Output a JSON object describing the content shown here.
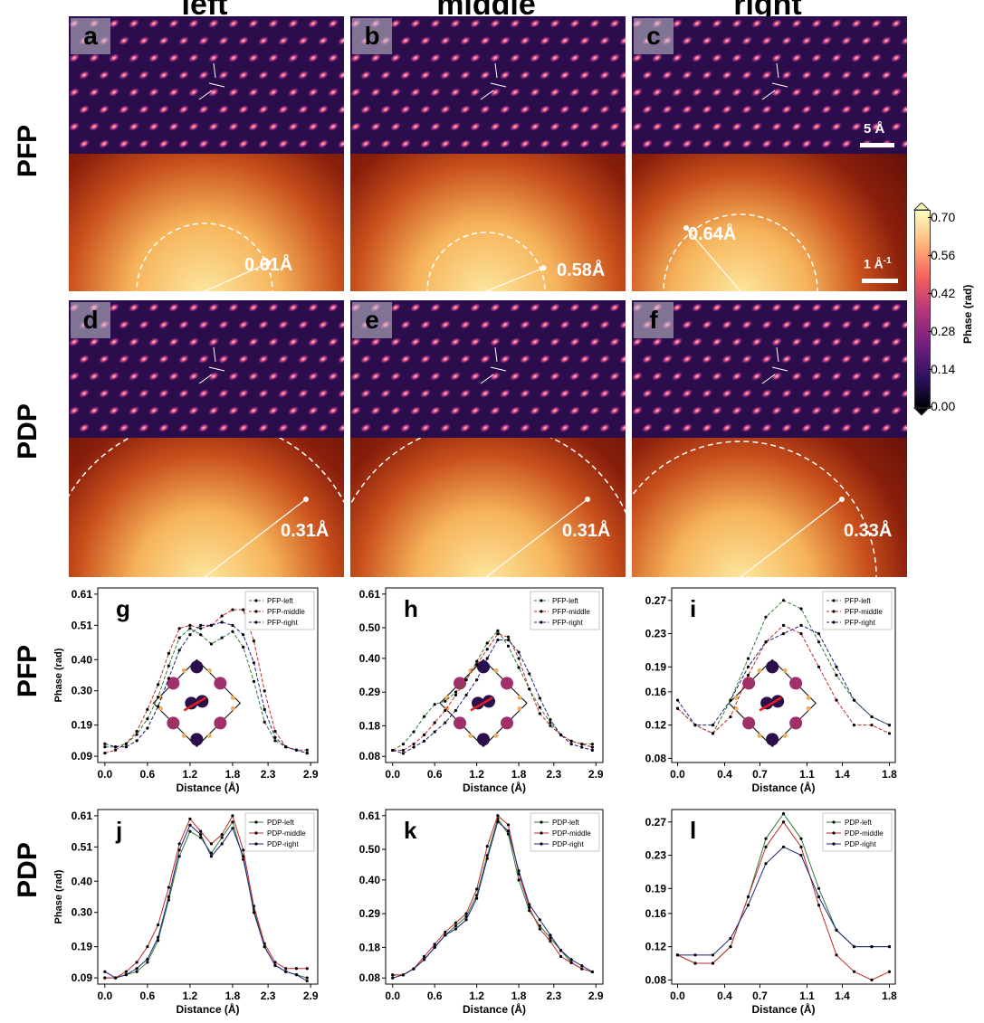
{
  "header": {
    "columns": [
      "left",
      "middle",
      "right"
    ]
  },
  "row_labels": {
    "pfp_top": "PFP",
    "pdp_top": "PDP",
    "pfp_bottom": "PFP",
    "pdp_bottom": "PDP"
  },
  "image_panels": {
    "letters": [
      "a",
      "b",
      "c",
      "d",
      "e",
      "f"
    ],
    "pfp_annotations": [
      "0.61Å",
      "0.58Å",
      "0.64Å"
    ],
    "pdp_annotations": [
      "0.31Å",
      "0.31Å",
      "0.33Å"
    ],
    "scalebar_real": "5 Å",
    "scalebar_recip": "1 Å",
    "scalebar_recip_sup": "-1"
  },
  "colorbar": {
    "label": "Phase (rad)",
    "ticks": [
      "0.70",
      "0.56",
      "0.42",
      "0.28",
      "0.14",
      "0.00"
    ],
    "colormap": "magma"
  },
  "colors": {
    "pfp_left": "#2e7d32",
    "pfp_middle": "#c62828",
    "pfp_right": "#1a237e",
    "pdp_left": "#2e7d32",
    "pdp_middle": "#c62828",
    "pdp_right": "#1a237e"
  },
  "chart_data": [
    {
      "panel": "g",
      "type": "line",
      "xlabel": "Distance (Å)",
      "ylabel": "Phase (rad)",
      "xlim": [
        -0.1,
        3.0
      ],
      "ylim": [
        0.07,
        0.63
      ],
      "xticks": [
        0.0,
        0.6,
        1.2,
        1.8,
        2.3,
        2.9
      ],
      "xtick_labels": [
        "0.0",
        "0.6",
        "1.2",
        "1.8",
        "2.3",
        "2.9"
      ],
      "yticks": [
        0.09,
        0.19,
        0.3,
        0.4,
        0.51,
        0.61
      ],
      "ytick_labels": [
        "0.09",
        "0.19",
        "0.30",
        "0.40",
        "0.51",
        "0.61"
      ],
      "style": "dashed",
      "legend": "top-right",
      "series": [
        {
          "name": "PFP-left",
          "color": "#2e7d32",
          "x": [
            0.0,
            0.15,
            0.3,
            0.45,
            0.6,
            0.75,
            0.9,
            1.05,
            1.2,
            1.35,
            1.5,
            1.65,
            1.8,
            1.95,
            2.1,
            2.25,
            2.4,
            2.55,
            2.7,
            2.85
          ],
          "y": [
            0.12,
            0.12,
            0.13,
            0.16,
            0.21,
            0.28,
            0.38,
            0.47,
            0.5,
            0.48,
            0.45,
            0.47,
            0.49,
            0.44,
            0.33,
            0.2,
            0.14,
            0.12,
            0.11,
            0.1
          ]
        },
        {
          "name": "PFP-middle",
          "color": "#c62828",
          "x": [
            0.0,
            0.15,
            0.3,
            0.45,
            0.6,
            0.75,
            0.9,
            1.05,
            1.2,
            1.35,
            1.5,
            1.65,
            1.8,
            1.95,
            2.1,
            2.25,
            2.4,
            2.55,
            2.7,
            2.85
          ],
          "y": [
            0.1,
            0.11,
            0.13,
            0.17,
            0.24,
            0.32,
            0.42,
            0.5,
            0.51,
            0.5,
            0.51,
            0.54,
            0.56,
            0.56,
            0.46,
            0.3,
            0.17,
            0.12,
            0.11,
            0.11
          ]
        },
        {
          "name": "PFP-right",
          "color": "#1a237e",
          "x": [
            0.0,
            0.15,
            0.3,
            0.45,
            0.6,
            0.75,
            0.9,
            1.05,
            1.2,
            1.35,
            1.5,
            1.65,
            1.8,
            1.95,
            2.1,
            2.25,
            2.4,
            2.55,
            2.7,
            2.85
          ],
          "y": [
            0.13,
            0.12,
            0.12,
            0.14,
            0.18,
            0.25,
            0.34,
            0.43,
            0.48,
            0.51,
            0.51,
            0.52,
            0.51,
            0.48,
            0.39,
            0.24,
            0.15,
            0.12,
            0.11,
            0.1
          ]
        }
      ]
    },
    {
      "panel": "h",
      "type": "line",
      "xlabel": "Distance (Å)",
      "ylabel": "",
      "xlim": [
        -0.1,
        3.0
      ],
      "ylim": [
        0.06,
        0.63
      ],
      "xticks": [
        0.0,
        0.6,
        1.2,
        1.8,
        2.3,
        2.9
      ],
      "xtick_labels": [
        "0.0",
        "0.6",
        "1.2",
        "1.8",
        "2.3",
        "2.9"
      ],
      "yticks": [
        0.08,
        0.18,
        0.29,
        0.4,
        0.5,
        0.61
      ],
      "ytick_labels": [
        "0.08",
        "0.18",
        "0.29",
        "0.40",
        "0.50",
        "0.61"
      ],
      "style": "dashed",
      "legend": "top-right",
      "series": [
        {
          "name": "PFP-left",
          "color": "#2e7d32",
          "x": [
            0.0,
            0.15,
            0.3,
            0.45,
            0.6,
            0.75,
            0.9,
            1.05,
            1.2,
            1.35,
            1.5,
            1.65,
            1.8,
            1.95,
            2.1,
            2.25,
            2.4,
            2.55,
            2.7,
            2.85
          ],
          "y": [
            0.1,
            0.12,
            0.16,
            0.21,
            0.25,
            0.26,
            0.29,
            0.33,
            0.39,
            0.45,
            0.49,
            0.44,
            0.37,
            0.3,
            0.24,
            0.19,
            0.15,
            0.13,
            0.12,
            0.12
          ]
        },
        {
          "name": "PFP-middle",
          "color": "#c62828",
          "x": [
            0.0,
            0.15,
            0.3,
            0.45,
            0.6,
            0.75,
            0.9,
            1.05,
            1.2,
            1.35,
            1.5,
            1.65,
            1.8,
            1.95,
            2.1,
            2.25,
            2.4,
            2.55,
            2.7,
            2.85
          ],
          "y": [
            0.1,
            0.1,
            0.12,
            0.15,
            0.19,
            0.23,
            0.28,
            0.33,
            0.38,
            0.43,
            0.48,
            0.47,
            0.4,
            0.3,
            0.22,
            0.18,
            0.15,
            0.13,
            0.12,
            0.11
          ]
        },
        {
          "name": "PFP-right",
          "color": "#1a237e",
          "x": [
            0.0,
            0.15,
            0.3,
            0.45,
            0.6,
            0.75,
            0.9,
            1.05,
            1.2,
            1.35,
            1.5,
            1.65,
            1.8,
            1.95,
            2.1,
            2.25,
            2.4,
            2.55,
            2.7,
            2.85
          ],
          "y": [
            0.1,
            0.09,
            0.11,
            0.13,
            0.16,
            0.19,
            0.23,
            0.28,
            0.33,
            0.4,
            0.46,
            0.46,
            0.42,
            0.35,
            0.27,
            0.2,
            0.15,
            0.12,
            0.11,
            0.1
          ]
        }
      ]
    },
    {
      "panel": "i",
      "type": "line",
      "xlabel": "Distance (Å)",
      "ylabel": "",
      "xlim": [
        -0.05,
        1.85
      ],
      "ylim": [
        0.075,
        0.285
      ],
      "xticks": [
        0.0,
        0.4,
        0.7,
        1.1,
        1.4,
        1.8
      ],
      "xtick_labels": [
        "0.0",
        "0.4",
        "0.7",
        "1.1",
        "1.4",
        "1.8"
      ],
      "yticks": [
        0.08,
        0.12,
        0.16,
        0.19,
        0.23,
        0.27
      ],
      "ytick_labels": [
        "0.08",
        "0.12",
        "0.16",
        "0.19",
        "0.23",
        "0.27"
      ],
      "style": "dashed",
      "legend": "top-right",
      "series": [
        {
          "name": "PFP-left",
          "color": "#2e7d32",
          "x": [
            0.0,
            0.15,
            0.3,
            0.45,
            0.6,
            0.75,
            0.9,
            1.05,
            1.2,
            1.35,
            1.5,
            1.65,
            1.8
          ],
          "y": [
            0.14,
            0.12,
            0.11,
            0.15,
            0.2,
            0.25,
            0.27,
            0.26,
            0.22,
            0.18,
            0.15,
            0.13,
            0.12
          ]
        },
        {
          "name": "PFP-middle",
          "color": "#c62828",
          "x": [
            0.0,
            0.15,
            0.3,
            0.45,
            0.6,
            0.75,
            0.9,
            1.05,
            1.2,
            1.35,
            1.5,
            1.65,
            1.8
          ],
          "y": [
            0.14,
            0.12,
            0.11,
            0.13,
            0.18,
            0.22,
            0.24,
            0.23,
            0.19,
            0.15,
            0.12,
            0.12,
            0.11
          ]
        },
        {
          "name": "PFP-right",
          "color": "#1a237e",
          "x": [
            0.0,
            0.15,
            0.3,
            0.45,
            0.6,
            0.75,
            0.9,
            1.05,
            1.2,
            1.35,
            1.5,
            1.65,
            1.8
          ],
          "y": [
            0.15,
            0.12,
            0.12,
            0.15,
            0.19,
            0.22,
            0.23,
            0.24,
            0.23,
            0.19,
            0.15,
            0.13,
            0.12
          ]
        }
      ]
    },
    {
      "panel": "j",
      "type": "line",
      "xlabel": "Distance (Å)",
      "ylabel": "Phase (rad)",
      "xlim": [
        -0.1,
        3.0
      ],
      "ylim": [
        0.07,
        0.63
      ],
      "xticks": [
        0.0,
        0.6,
        1.2,
        1.8,
        2.3,
        2.9
      ],
      "xtick_labels": [
        "0.0",
        "0.6",
        "1.2",
        "1.8",
        "2.3",
        "2.9"
      ],
      "yticks": [
        0.09,
        0.19,
        0.3,
        0.4,
        0.51,
        0.61
      ],
      "ytick_labels": [
        "0.09",
        "0.19",
        "0.30",
        "0.40",
        "0.51",
        "0.61"
      ],
      "style": "solid",
      "legend": "top-right",
      "series": [
        {
          "name": "PDP-left",
          "color": "#2e7d32",
          "x": [
            0.0,
            0.15,
            0.3,
            0.45,
            0.6,
            0.75,
            0.9,
            1.05,
            1.2,
            1.35,
            1.5,
            1.65,
            1.8,
            1.95,
            2.1,
            2.25,
            2.4,
            2.55,
            2.7,
            2.85
          ],
          "y": [
            0.09,
            0.09,
            0.1,
            0.11,
            0.14,
            0.21,
            0.34,
            0.48,
            0.56,
            0.54,
            0.49,
            0.54,
            0.59,
            0.47,
            0.31,
            0.19,
            0.13,
            0.11,
            0.1,
            0.09
          ]
        },
        {
          "name": "PDP-middle",
          "color": "#c62828",
          "x": [
            0.0,
            0.15,
            0.3,
            0.45,
            0.6,
            0.75,
            0.9,
            1.05,
            1.2,
            1.35,
            1.5,
            1.65,
            1.8,
            1.95,
            2.1,
            2.25,
            2.4,
            2.55,
            2.7,
            2.85
          ],
          "y": [
            0.09,
            0.09,
            0.11,
            0.14,
            0.19,
            0.26,
            0.38,
            0.52,
            0.6,
            0.56,
            0.52,
            0.55,
            0.61,
            0.5,
            0.32,
            0.2,
            0.14,
            0.12,
            0.12,
            0.12
          ]
        },
        {
          "name": "PDP-right",
          "color": "#1a237e",
          "x": [
            0.0,
            0.15,
            0.3,
            0.45,
            0.6,
            0.75,
            0.9,
            1.05,
            1.2,
            1.35,
            1.5,
            1.65,
            1.8,
            1.95,
            2.1,
            2.25,
            2.4,
            2.55,
            2.7,
            2.85
          ],
          "y": [
            0.11,
            0.09,
            0.1,
            0.12,
            0.15,
            0.22,
            0.35,
            0.5,
            0.58,
            0.55,
            0.48,
            0.52,
            0.57,
            0.48,
            0.3,
            0.19,
            0.13,
            0.11,
            0.1,
            0.08
          ]
        }
      ]
    },
    {
      "panel": "k",
      "type": "line",
      "xlabel": "Distance (Å)",
      "ylabel": "",
      "xlim": [
        -0.1,
        3.0
      ],
      "ylim": [
        0.06,
        0.63
      ],
      "xticks": [
        0.0,
        0.6,
        1.2,
        1.8,
        2.3,
        2.9
      ],
      "xtick_labels": [
        "0.0",
        "0.6",
        "1.2",
        "1.8",
        "2.3",
        "2.9"
      ],
      "yticks": [
        0.08,
        0.18,
        0.29,
        0.4,
        0.5,
        0.61
      ],
      "ytick_labels": [
        "0.08",
        "0.18",
        "0.29",
        "0.40",
        "0.50",
        "0.61"
      ],
      "style": "solid",
      "legend": "top-right",
      "series": [
        {
          "name": "PDP-left",
          "color": "#2e7d32",
          "x": [
            0.0,
            0.15,
            0.3,
            0.45,
            0.6,
            0.75,
            0.9,
            1.05,
            1.2,
            1.35,
            1.5,
            1.65,
            1.8,
            1.95,
            2.1,
            2.25,
            2.4,
            2.55,
            2.7,
            2.85
          ],
          "y": [
            0.09,
            0.09,
            0.11,
            0.14,
            0.18,
            0.22,
            0.25,
            0.28,
            0.35,
            0.48,
            0.6,
            0.55,
            0.4,
            0.3,
            0.25,
            0.21,
            0.17,
            0.13,
            0.11,
            0.1
          ]
        },
        {
          "name": "PDP-middle",
          "color": "#c62828",
          "x": [
            0.0,
            0.15,
            0.3,
            0.45,
            0.6,
            0.75,
            0.9,
            1.05,
            1.2,
            1.35,
            1.5,
            1.65,
            1.8,
            1.95,
            2.1,
            2.25,
            2.4,
            2.55,
            2.7,
            2.85
          ],
          "y": [
            0.09,
            0.09,
            0.11,
            0.15,
            0.19,
            0.23,
            0.26,
            0.29,
            0.37,
            0.51,
            0.61,
            0.58,
            0.42,
            0.31,
            0.24,
            0.2,
            0.15,
            0.13,
            0.11,
            0.1
          ]
        },
        {
          "name": "PDP-right",
          "color": "#1a237e",
          "x": [
            0.0,
            0.15,
            0.3,
            0.45,
            0.6,
            0.75,
            0.9,
            1.05,
            1.2,
            1.35,
            1.5,
            1.65,
            1.8,
            1.95,
            2.1,
            2.25,
            2.4,
            2.55,
            2.7,
            2.85
          ],
          "y": [
            0.08,
            0.09,
            0.11,
            0.14,
            0.18,
            0.22,
            0.24,
            0.27,
            0.34,
            0.47,
            0.59,
            0.56,
            0.43,
            0.32,
            0.27,
            0.22,
            0.17,
            0.14,
            0.12,
            0.1
          ]
        }
      ]
    },
    {
      "panel": "l",
      "type": "line",
      "xlabel": "Distance (Å)",
      "ylabel": "",
      "xlim": [
        -0.05,
        1.85
      ],
      "ylim": [
        0.075,
        0.285
      ],
      "xticks": [
        0.0,
        0.4,
        0.7,
        1.1,
        1.4,
        1.8
      ],
      "xtick_labels": [
        "0.0",
        "0.4",
        "0.7",
        "1.1",
        "1.4",
        "1.8"
      ],
      "yticks": [
        0.08,
        0.12,
        0.16,
        0.19,
        0.23,
        0.27
      ],
      "ytick_labels": [
        "0.08",
        "0.12",
        "0.16",
        "0.19",
        "0.23",
        "0.27"
      ],
      "style": "solid",
      "legend": "top-right",
      "series": [
        {
          "name": "PDP-left",
          "color": "#2e7d32",
          "x": [
            0.0,
            0.15,
            0.3,
            0.45,
            0.6,
            0.75,
            0.9,
            1.05,
            1.2,
            1.35,
            1.5,
            1.65,
            1.8
          ],
          "y": [
            0.11,
            0.1,
            0.1,
            0.12,
            0.18,
            0.25,
            0.28,
            0.25,
            0.19,
            0.14,
            0.12,
            0.12,
            0.12
          ]
        },
        {
          "name": "PDP-middle",
          "color": "#c62828",
          "x": [
            0.0,
            0.15,
            0.3,
            0.45,
            0.6,
            0.75,
            0.9,
            1.05,
            1.2,
            1.35,
            1.5,
            1.65,
            1.8
          ],
          "y": [
            0.11,
            0.1,
            0.1,
            0.12,
            0.18,
            0.24,
            0.27,
            0.24,
            0.17,
            0.11,
            0.09,
            0.08,
            0.09
          ]
        },
        {
          "name": "PDP-right",
          "color": "#1a237e",
          "x": [
            0.0,
            0.15,
            0.3,
            0.45,
            0.6,
            0.75,
            0.9,
            1.05,
            1.2,
            1.35,
            1.5,
            1.65,
            1.8
          ],
          "y": [
            0.11,
            0.11,
            0.11,
            0.13,
            0.17,
            0.22,
            0.24,
            0.23,
            0.18,
            0.14,
            0.12,
            0.12,
            0.12
          ]
        }
      ]
    }
  ]
}
